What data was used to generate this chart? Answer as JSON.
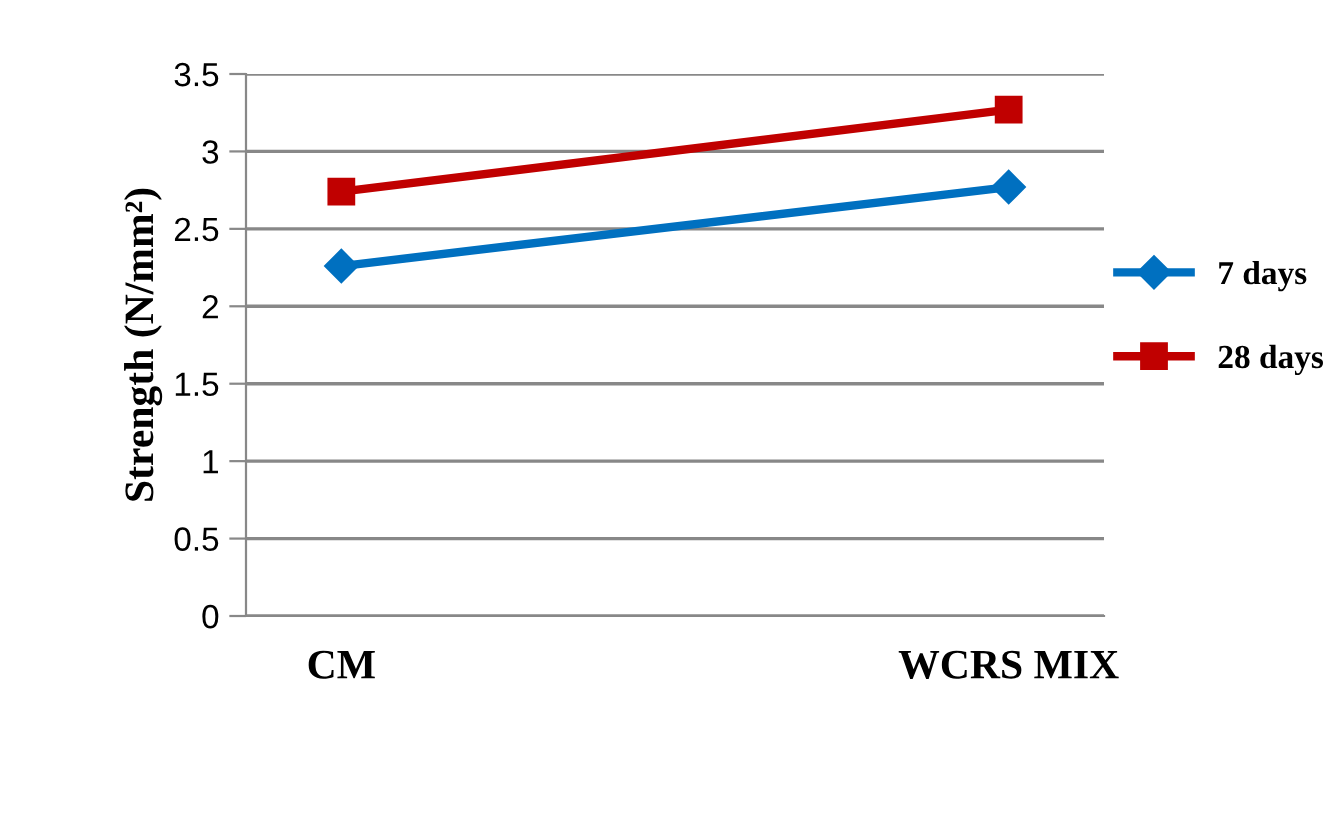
{
  "chart_data": {
    "type": "line",
    "categories": [
      "CM",
      "WCRS MIX"
    ],
    "ylabel": "Strength (N/mm²)",
    "ylim": [
      0,
      3.5
    ],
    "yticks": [
      0,
      0.5,
      1,
      1.5,
      2,
      2.5,
      3,
      3.5
    ],
    "grid": "y",
    "legend": "right",
    "series": [
      {
        "name": "7 days",
        "color": "#0070c0",
        "values": [
          2.26,
          2.77
        ],
        "marker": "diamond"
      },
      {
        "name": "28 days",
        "color": "#c00000",
        "values": [
          2.74,
          3.27
        ],
        "marker": "square"
      }
    ]
  }
}
